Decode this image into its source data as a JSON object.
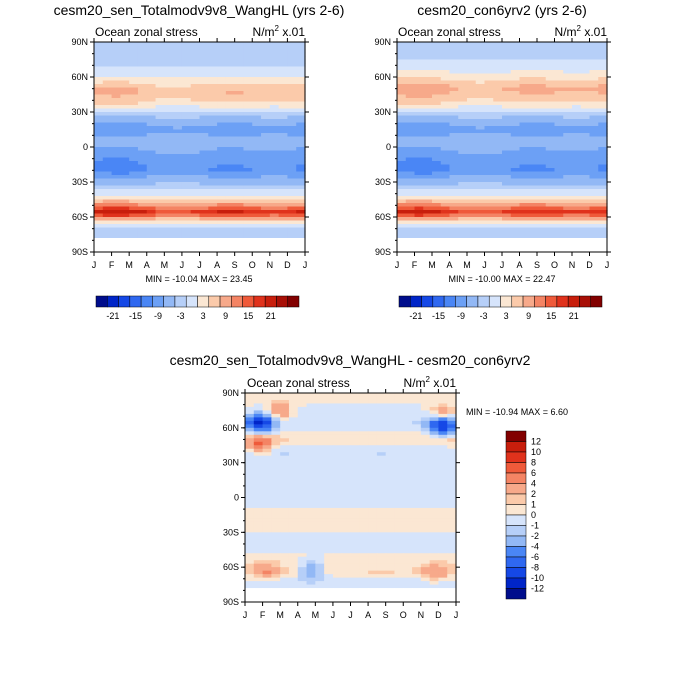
{
  "chart_data": [
    {
      "type": "heatmap",
      "title": "cesm20_sen_Totalmodv9v8_WangHL (yrs 2-6)",
      "left_string": "Ocean zonal stress",
      "right_string_base": "N/m",
      "right_string_exp": "2",
      "right_string_tail": " x.01",
      "x_ticks": [
        "J",
        "F",
        "M",
        "A",
        "M",
        "J",
        "J",
        "A",
        "S",
        "O",
        "N",
        "D",
        "J"
      ],
      "y_ticks": [
        "90N",
        "60N",
        "30N",
        "0",
        "30S",
        "60S",
        "90S"
      ],
      "ylim": [
        -90,
        90
      ],
      "stats": "MIN = -10.04  MAX =  23.45",
      "colorbar_labels": [
        "-21",
        "-15",
        "-9",
        "-3",
        "3",
        "9",
        "15",
        "21"
      ],
      "bands": [
        {
          "lat": 80,
          "value": -0.5
        },
        {
          "lat": 72,
          "value": -1
        },
        {
          "lat": 60,
          "value": 3
        },
        {
          "lat": 48,
          "value": 9
        },
        {
          "lat": 38,
          "value": 6
        },
        {
          "lat": 28,
          "value": -2
        },
        {
          "lat": 15,
          "value": -8
        },
        {
          "lat": 5,
          "value": -4
        },
        {
          "lat": -10,
          "value": -8
        },
        {
          "lat": -20,
          "value": -9
        },
        {
          "lat": -32,
          "value": -3
        },
        {
          "lat": -42,
          "value": 3
        },
        {
          "lat": -50,
          "value": 12
        },
        {
          "lat": -56,
          "value": 21
        },
        {
          "lat": -62,
          "value": 9
        },
        {
          "lat": -67,
          "value": 0.5
        },
        {
          "lat": -72,
          "value": -0.5
        }
      ]
    },
    {
      "type": "heatmap",
      "title": "cesm20_con6yrv2 (yrs 2-6)",
      "left_string": "Ocean zonal stress",
      "right_string_base": "N/m",
      "right_string_exp": "2",
      "right_string_tail": " x.01",
      "x_ticks": [
        "J",
        "F",
        "M",
        "A",
        "M",
        "J",
        "J",
        "A",
        "S",
        "O",
        "N",
        "D",
        "J"
      ],
      "y_ticks": [
        "90N",
        "60N",
        "30N",
        "0",
        "30S",
        "60S",
        "90S"
      ],
      "ylim": [
        -90,
        90
      ],
      "stats": "MIN = -10.00  MAX =  22.47",
      "colorbar_labels": [
        "-21",
        "-15",
        "-9",
        "-3",
        "3",
        "9",
        "15",
        "21"
      ],
      "bands": [
        {
          "lat": 80,
          "value": -0.5
        },
        {
          "lat": 72,
          "value": 0.5
        },
        {
          "lat": 62,
          "value": 4
        },
        {
          "lat": 50,
          "value": 10
        },
        {
          "lat": 38,
          "value": 6
        },
        {
          "lat": 28,
          "value": -2
        },
        {
          "lat": 15,
          "value": -8
        },
        {
          "lat": 5,
          "value": -4
        },
        {
          "lat": -10,
          "value": -8
        },
        {
          "lat": -20,
          "value": -9
        },
        {
          "lat": -32,
          "value": -3
        },
        {
          "lat": -42,
          "value": 3
        },
        {
          "lat": -50,
          "value": 12
        },
        {
          "lat": -56,
          "value": 20
        },
        {
          "lat": -62,
          "value": 9
        },
        {
          "lat": -67,
          "value": 0.5
        },
        {
          "lat": -72,
          "value": -0.5
        }
      ]
    },
    {
      "type": "heatmap",
      "title": "cesm20_sen_Totalmodv9v8_WangHL - cesm20_con6yrv2",
      "left_string": "Ocean zonal stress",
      "right_string_base": "N/m",
      "right_string_exp": "2",
      "right_string_tail": " x.01",
      "x_ticks": [
        "J",
        "F",
        "M",
        "A",
        "M",
        "J",
        "J",
        "A",
        "S",
        "O",
        "N",
        "D",
        "J"
      ],
      "y_ticks": [
        "90N",
        "60N",
        "30N",
        "0",
        "30S",
        "60S",
        "90S"
      ],
      "ylim": [
        -90,
        90
      ],
      "stats": "MIN = -10.94  MAX =   6.60",
      "colorbar_labels": [
        "12",
        "10",
        "8",
        "6",
        "4",
        "2",
        "1",
        "0",
        "-1",
        "-2",
        "-4",
        "-6",
        "-8",
        "-10",
        "-12"
      ],
      "bands": [
        {
          "lat": 80,
          "value": 0
        },
        {
          "lat": 65,
          "value": -1
        },
        {
          "lat": 50,
          "value": 1
        },
        {
          "lat": 40,
          "value": -1
        },
        {
          "lat": 20,
          "value": -0.5
        },
        {
          "lat": 0,
          "value": -0.5
        },
        {
          "lat": -20,
          "value": 0.5
        },
        {
          "lat": -40,
          "value": -0.5
        },
        {
          "lat": -55,
          "value": 0.5
        },
        {
          "lat": -65,
          "value": 1
        },
        {
          "lat": -72,
          "value": -0.5
        }
      ],
      "features": [
        {
          "month": 0.9,
          "lat": 64,
          "value": -10
        },
        {
          "month": 0.8,
          "lat": 46,
          "value": 6
        },
        {
          "month": 11.2,
          "lat": 62,
          "value": -10
        },
        {
          "month": 11.3,
          "lat": 72,
          "value": 4
        },
        {
          "month": 2.0,
          "lat": 74,
          "value": 4
        },
        {
          "month": 1.2,
          "lat": -63,
          "value": 3
        },
        {
          "month": 3.8,
          "lat": -63,
          "value": -4
        },
        {
          "month": 10.8,
          "lat": -64,
          "value": 3
        }
      ]
    }
  ]
}
